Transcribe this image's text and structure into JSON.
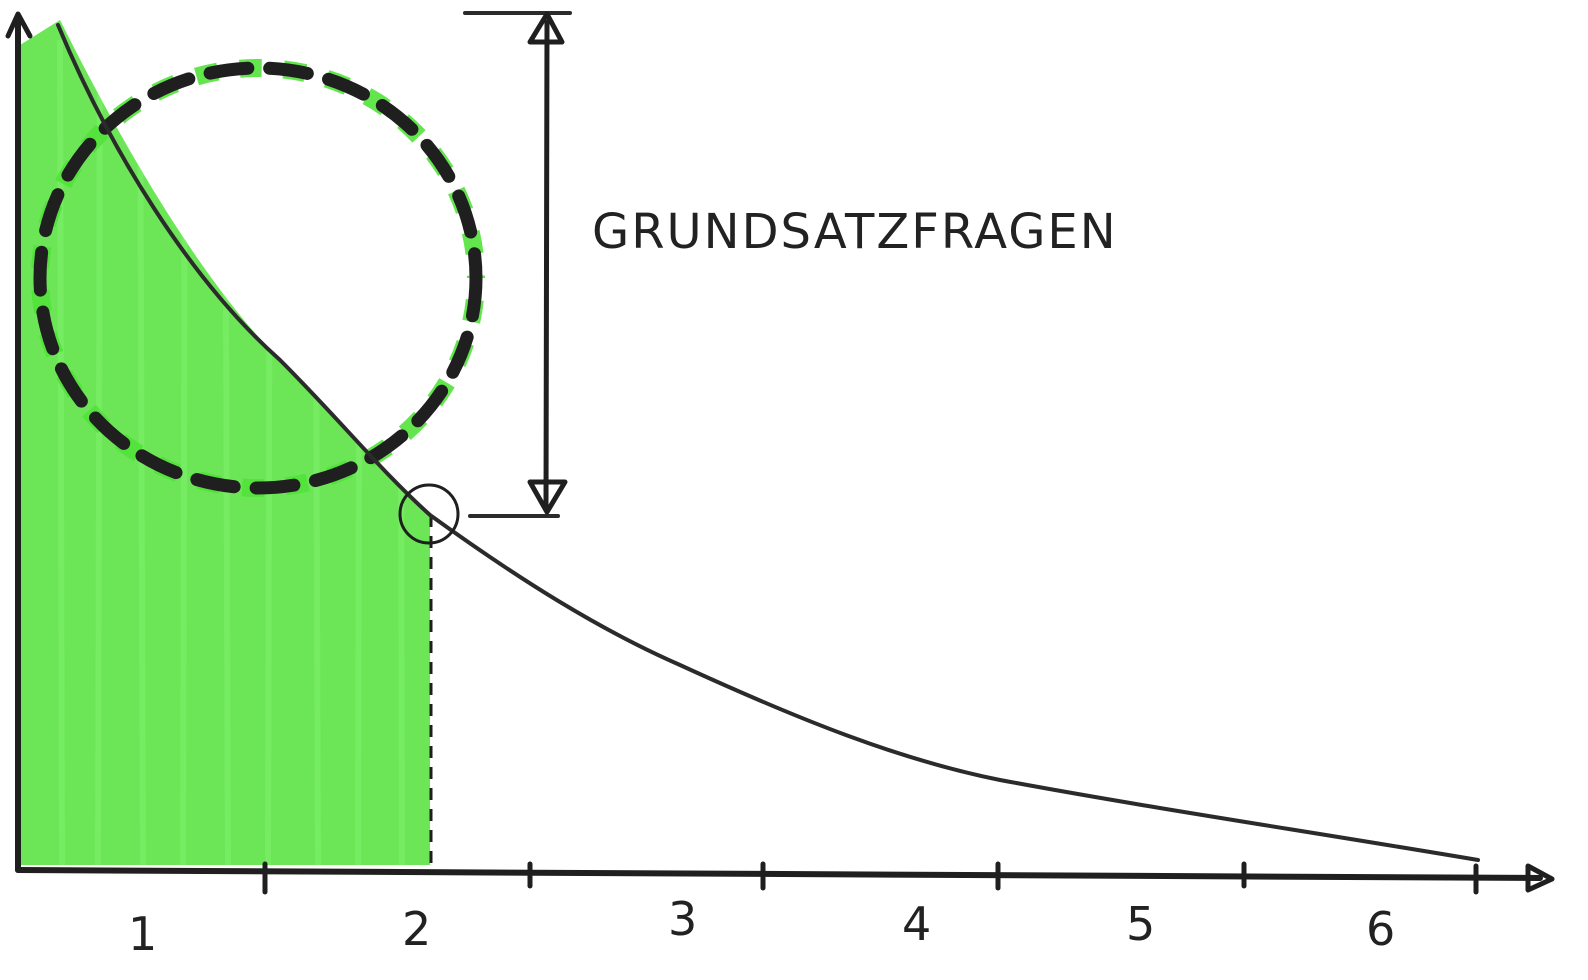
{
  "annotation": {
    "label": "GRUNDSATZFRAGEN"
  },
  "x_axis": {
    "tick_labels": [
      "1",
      "2",
      "3",
      "4",
      "5",
      "6"
    ]
  },
  "colors": {
    "fill_area": "#52e23a",
    "fill_area_light": "#7ef06a",
    "ink": "#222222",
    "dash_highlight": "#52e23a"
  },
  "icons": {
    "x_axis_arrow": "arrow-right-icon",
    "y_axis_arrow": "arrow-up-icon",
    "dimension_arrows": "double-headed-arrow-icon"
  }
}
